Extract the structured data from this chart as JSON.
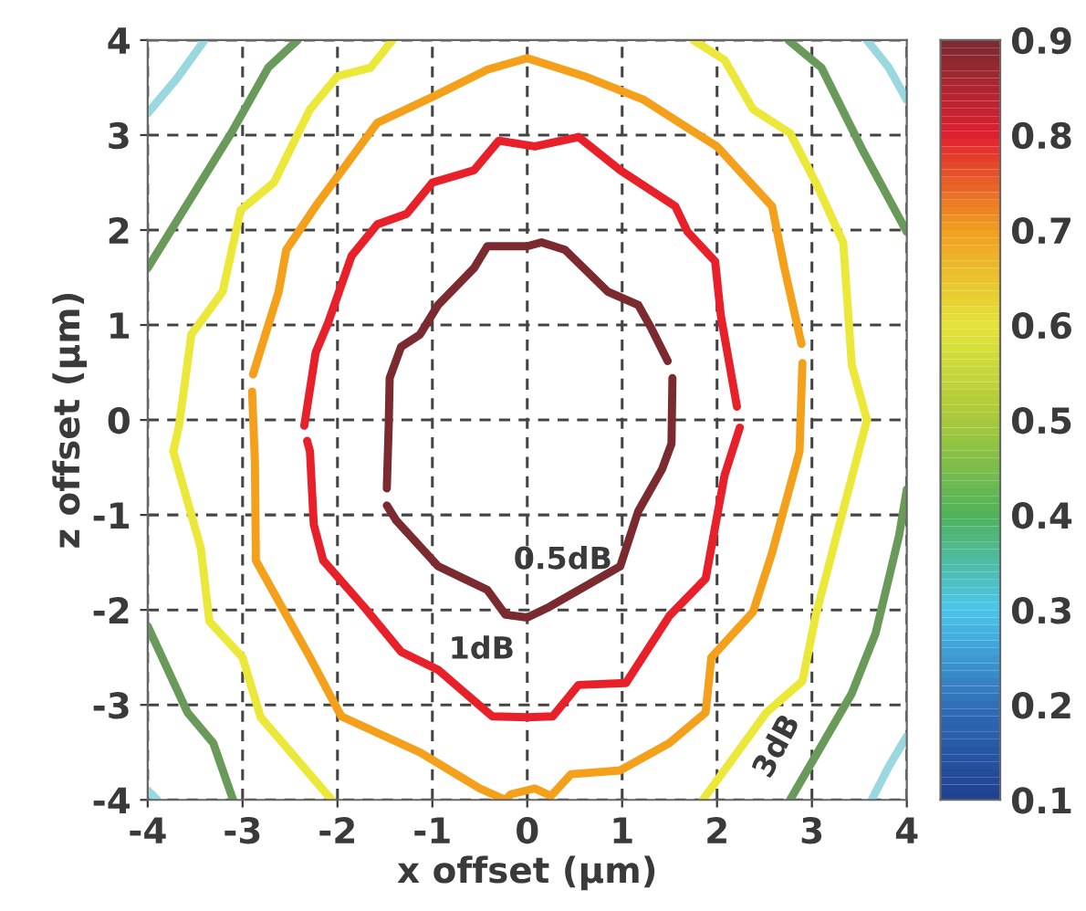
{
  "chart_data": {
    "type": "line",
    "xlabel": "x offset (µm)",
    "ylabel": "z offset (µm)",
    "xlim": [
      -4,
      4
    ],
    "ylim": [
      -4,
      4
    ],
    "xticks": [
      -4,
      -3,
      -2,
      -1,
      0,
      1,
      2,
      3,
      4
    ],
    "yticks": [
      -4,
      -3,
      -2,
      -1,
      0,
      1,
      2,
      3,
      4
    ],
    "grid": true,
    "marker": "none",
    "line_style": "solid",
    "clim": [
      0.1,
      0.9
    ],
    "cticks": [
      0.1,
      0.2,
      0.3,
      0.4,
      0.5,
      0.6,
      0.7,
      0.8,
      0.9
    ],
    "annotations": [
      "0.5dB",
      "1dB",
      "3dB"
    ],
    "series": [
      {
        "color": "#7b2a30",
        "x": [
          -1.48,
          -1.46,
          -1.45,
          -1.33,
          -1.13,
          -0.94,
          -0.56,
          -0.42,
          0,
          0.15,
          0.4,
          0.85,
          1.17,
          1.31,
          1.48
        ],
        "values": [
          -0.72,
          -0.06,
          0.44,
          0.77,
          0.9,
          1.21,
          1.6,
          1.83,
          1.83,
          1.87,
          1.79,
          1.35,
          1.21,
          0.96,
          0.62
        ]
      },
      {
        "color": "#7b2a30",
        "x": [
          -1.48,
          -1.38,
          -0.94,
          -0.42,
          -0.23,
          0,
          0.21,
          0.98,
          1.17,
          1.42,
          1.52,
          1.53
        ],
        "values": [
          -0.9,
          -1.06,
          -1.54,
          -1.79,
          -2.05,
          -2.08,
          -1.98,
          -1.54,
          -0.96,
          -0.52,
          -0.25,
          0.44
        ]
      },
      {
        "color": "#e8202a",
        "x": [
          -2.35,
          -2.23,
          -2.1,
          -1.85,
          -1.58,
          -1.27,
          -1.0,
          -0.56,
          -0.3,
          0.08,
          0.54,
          0.98,
          1.56,
          1.69,
          1.98,
          2.04,
          2.21
        ],
        "values": [
          -0.06,
          0.71,
          1.02,
          1.73,
          2.06,
          2.17,
          2.5,
          2.63,
          2.94,
          2.88,
          2.98,
          2.63,
          2.25,
          1.98,
          1.67,
          1.1,
          0.14
        ]
      },
      {
        "color": "#e8202a",
        "x": [
          -2.32,
          -2.29,
          -2.25,
          -2.15,
          -1.71,
          -1.33,
          -0.94,
          -0.37,
          0,
          0.27,
          0.54,
          1.04,
          1.5,
          1.88,
          2.08,
          2.24
        ],
        "values": [
          -0.22,
          -0.33,
          -1.1,
          -1.48,
          -1.98,
          -2.44,
          -2.63,
          -3.12,
          -3.13,
          -3.12,
          -2.79,
          -2.77,
          -2.06,
          -1.67,
          -0.58,
          -0.08
        ]
      },
      {
        "color": "#f5a01a",
        "x": [
          -2.89,
          -2.62,
          -2.54,
          -2.23,
          -1.58,
          -1.0,
          -0.42,
          0,
          0.6,
          1.23,
          1.62,
          2.0,
          2.58,
          2.71,
          2.89
        ],
        "values": [
          0.48,
          1.35,
          1.79,
          2.25,
          3.13,
          3.4,
          3.69,
          3.81,
          3.62,
          3.37,
          3.12,
          2.88,
          2.25,
          1.6,
          0.8
        ]
      },
      {
        "color": "#f5a01a",
        "x": [
          -2.9,
          -2.87,
          -2.86,
          -2.29,
          -1.96,
          -1.13,
          -0.5,
          -0.23,
          -0.17,
          0.08,
          0.25,
          0.46,
          0.98,
          1.5,
          1.88,
          1.94,
          2.38,
          2.58,
          2.87,
          2.88,
          2.9
        ],
        "values": [
          0.3,
          -0.44,
          -1.48,
          -2.5,
          -3.12,
          -3.5,
          -3.88,
          -4.0,
          -3.94,
          -3.88,
          -3.96,
          -3.73,
          -3.69,
          -3.4,
          -3.08,
          -2.5,
          -2.02,
          -1.4,
          -0.33,
          0,
          0.6
        ]
      },
      {
        "color": "#ece83a",
        "x": [
          -3.73,
          -3.67,
          -3.54,
          -3.21,
          -3.02,
          -2.67,
          -2.29,
          -2.0,
          -1.65,
          -1.42
        ],
        "values": [
          -0.33,
          -0.06,
          0.9,
          1.35,
          2.21,
          2.5,
          3.27,
          3.62,
          3.71,
          4.0
        ]
      },
      {
        "color": "#ece83a",
        "x": [
          -3.73,
          -3.44,
          -3.35,
          -3.0,
          -2.81,
          -2.06
        ],
        "values": [
          -0.33,
          -1.35,
          -2.12,
          -2.5,
          -3.13,
          -4.0
        ]
      },
      {
        "color": "#ece83a",
        "x": [
          1.75,
          2.08,
          2.38,
          2.77,
          3.04,
          3.33,
          3.42,
          3.58
        ],
        "values": [
          4.0,
          3.79,
          3.27,
          3.02,
          2.5,
          1.87,
          0.58,
          0
        ]
      },
      {
        "color": "#ece83a",
        "x": [
          1.85,
          2.52,
          2.9,
          3.04,
          3.29,
          3.58
        ],
        "values": [
          -4.0,
          -3.08,
          -2.75,
          -2.06,
          -1.1,
          0
        ]
      },
      {
        "color": "#6a9a5a",
        "x": [
          -4.0,
          -3.12,
          -2.73,
          -2.42
        ],
        "values": [
          1.6,
          3.02,
          3.71,
          4.0
        ]
      },
      {
        "color": "#6a9a5a",
        "x": [
          -4.0,
          -3.58,
          -3.31,
          -3.1
        ],
        "values": [
          -2.17,
          -3.08,
          -3.4,
          -4.0
        ]
      },
      {
        "color": "#6a9a5a",
        "x": [
          2.75,
          3.1,
          3.54,
          4.0
        ],
        "values": [
          4.0,
          3.71,
          2.83,
          1.98
        ]
      },
      {
        "color": "#6a9a5a",
        "x": [
          2.77,
          3.42,
          3.67,
          3.92,
          4.0
        ],
        "values": [
          -4.0,
          -2.88,
          -2.25,
          -1.21,
          -0.73
        ]
      },
      {
        "color": "#9ad8e0",
        "x": [
          -4.0,
          -3.69,
          -3.4
        ],
        "values": [
          3.23,
          3.6,
          4.0
        ]
      },
      {
        "color": "#9ad8e0",
        "x": [
          3.58,
          3.81,
          4.0
        ],
        "values": [
          4.0,
          3.71,
          3.37
        ]
      },
      {
        "color": "#9ad8e0",
        "x": [
          -4.0,
          -3.9
        ],
        "values": [
          -3.9,
          -4.0
        ]
      },
      {
        "color": "#9ad8e0",
        "x": [
          3.63,
          3.81,
          4.0
        ],
        "values": [
          -4.0,
          -3.65,
          -3.33
        ]
      }
    ]
  }
}
